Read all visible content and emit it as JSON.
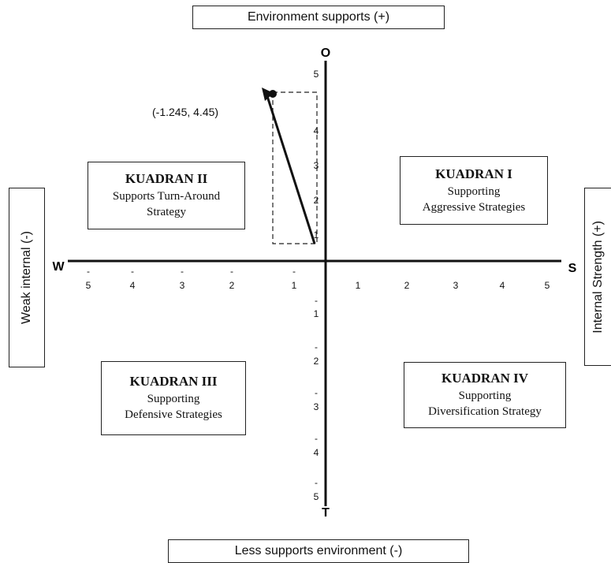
{
  "labels": {
    "top": "Environment supports (+)",
    "bottom": "Less supports environment (-)",
    "left": "Weak internal (-)",
    "right": "Internal Strength (+)"
  },
  "axis_letters": {
    "north": "O",
    "south": "T",
    "west": "W",
    "east": "S"
  },
  "x_ticks_negative": [
    "5",
    "4",
    "3",
    "2",
    "1"
  ],
  "x_ticks_positive": [
    "1",
    "2",
    "3",
    "4",
    "5"
  ],
  "y_ticks_positive": [
    "1",
    "2",
    "3",
    "4",
    "5"
  ],
  "y_ticks_negative": [
    "1",
    "2",
    "3",
    "4",
    "5"
  ],
  "quadrants": {
    "q1": {
      "title": "KUADRAN I",
      "line1": "Supporting",
      "line2": "Aggressive Strategies"
    },
    "q2": {
      "title": "KUADRAN II",
      "line1": "Supports Turn-Around",
      "line2": "Strategy"
    },
    "q3": {
      "title": "KUADRAN III",
      "line1": "Supporting",
      "line2": "Defensive Strategies"
    },
    "q4": {
      "title": "KUADRAN IV",
      "line1": "Supporting",
      "line2": "Diversification Strategy"
    }
  },
  "point": {
    "label": "(-1.245, 4.45)",
    "x": -1.245,
    "y": 4.45
  },
  "colors": {
    "line": "#111111",
    "background": "#ffffff"
  }
}
